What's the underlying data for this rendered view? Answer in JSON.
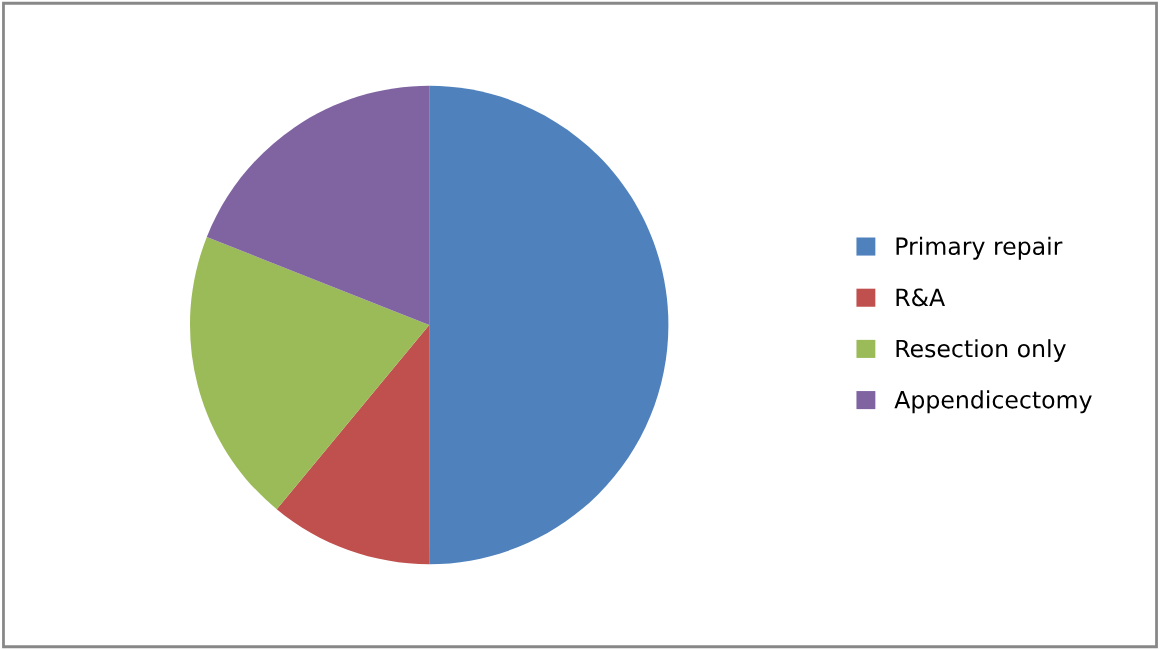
{
  "chart_data": {
    "type": "pie",
    "categories": [
      "Primary repair",
      "R&A",
      "Resection only",
      "Appendicectomy"
    ],
    "values": [
      50,
      11,
      20,
      19
    ],
    "colors": [
      "#4f81bd",
      "#c0504d",
      "#9bbb59",
      "#8064a2"
    ],
    "legend": "right"
  }
}
